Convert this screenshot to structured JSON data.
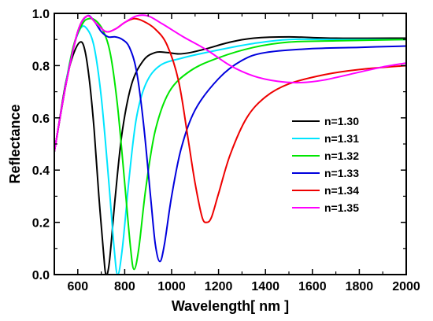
{
  "chart_data": {
    "type": "line",
    "xlabel": "Wavelength[ nm ]",
    "ylabel": "Reflectance",
    "xlim": [
      500,
      2000
    ],
    "ylim": [
      0,
      1.0
    ],
    "x_ticks": [
      600,
      800,
      1000,
      1200,
      1400,
      1600,
      1800,
      2000
    ],
    "y_ticks": [
      0.0,
      0.2,
      0.4,
      0.6,
      0.8,
      1.0
    ],
    "x_tick_labels": [
      "600",
      "800",
      "1000",
      "1200",
      "1400",
      "1600",
      "1800",
      "2000"
    ],
    "y_tick_labels": [
      "0.0",
      "0.2",
      "0.4",
      "0.6",
      "0.8",
      "1.0"
    ],
    "legend_position": "right-middle",
    "grid": false,
    "series": [
      {
        "name": "n=1.30",
        "color": "#000000",
        "points": [
          [
            500,
            0.47
          ],
          [
            520,
            0.58
          ],
          [
            550,
            0.74
          ],
          [
            580,
            0.84
          ],
          [
            610,
            0.89
          ],
          [
            630,
            0.86
          ],
          [
            650,
            0.74
          ],
          [
            670,
            0.55
          ],
          [
            690,
            0.3
          ],
          [
            710,
            0.08
          ],
          [
            720,
            0.0
          ],
          [
            735,
            0.05
          ],
          [
            760,
            0.3
          ],
          [
            790,
            0.55
          ],
          [
            830,
            0.73
          ],
          [
            880,
            0.82
          ],
          [
            930,
            0.85
          ],
          [
            980,
            0.85
          ],
          [
            1030,
            0.845
          ],
          [
            1080,
            0.85
          ],
          [
            1150,
            0.865
          ],
          [
            1250,
            0.89
          ],
          [
            1350,
            0.905
          ],
          [
            1500,
            0.91
          ],
          [
            1700,
            0.905
          ],
          [
            2000,
            0.905
          ]
        ]
      },
      {
        "name": "n=1.31",
        "color": "#00e5ff",
        "points": [
          [
            500,
            0.47
          ],
          [
            530,
            0.63
          ],
          [
            570,
            0.83
          ],
          [
            610,
            0.94
          ],
          [
            640,
            0.94
          ],
          [
            670,
            0.87
          ],
          [
            700,
            0.68
          ],
          [
            730,
            0.38
          ],
          [
            755,
            0.1
          ],
          [
            770,
            0.0
          ],
          [
            790,
            0.1
          ],
          [
            820,
            0.38
          ],
          [
            850,
            0.6
          ],
          [
            890,
            0.73
          ],
          [
            950,
            0.8
          ],
          [
            1050,
            0.83
          ],
          [
            1200,
            0.86
          ],
          [
            1350,
            0.885
          ],
          [
            1500,
            0.9
          ],
          [
            1700,
            0.9
          ],
          [
            2000,
            0.9
          ]
        ]
      },
      {
        "name": "n=1.32",
        "color": "#00e600",
        "points": [
          [
            500,
            0.47
          ],
          [
            540,
            0.68
          ],
          [
            580,
            0.87
          ],
          [
            620,
            0.96
          ],
          [
            650,
            0.98
          ],
          [
            680,
            0.97
          ],
          [
            710,
            0.93
          ],
          [
            740,
            0.84
          ],
          [
            770,
            0.64
          ],
          [
            800,
            0.35
          ],
          [
            825,
            0.1
          ],
          [
            840,
            0.02
          ],
          [
            860,
            0.1
          ],
          [
            890,
            0.33
          ],
          [
            930,
            0.55
          ],
          [
            990,
            0.7
          ],
          [
            1080,
            0.78
          ],
          [
            1200,
            0.83
          ],
          [
            1350,
            0.87
          ],
          [
            1500,
            0.89
          ],
          [
            1700,
            0.895
          ],
          [
            2000,
            0.9
          ]
        ]
      },
      {
        "name": "n=1.33",
        "color": "#0000dd",
        "points": [
          [
            500,
            0.47
          ],
          [
            550,
            0.73
          ],
          [
            600,
            0.93
          ],
          [
            640,
            0.99
          ],
          [
            670,
            0.97
          ],
          [
            700,
            0.93
          ],
          [
            730,
            0.91
          ],
          [
            760,
            0.91
          ],
          [
            790,
            0.9
          ],
          [
            820,
            0.87
          ],
          [
            850,
            0.78
          ],
          [
            880,
            0.58
          ],
          [
            910,
            0.3
          ],
          [
            930,
            0.12
          ],
          [
            950,
            0.05
          ],
          [
            970,
            0.12
          ],
          [
            1000,
            0.3
          ],
          [
            1040,
            0.48
          ],
          [
            1100,
            0.63
          ],
          [
            1200,
            0.75
          ],
          [
            1300,
            0.82
          ],
          [
            1400,
            0.85
          ],
          [
            1600,
            0.865
          ],
          [
            1800,
            0.87
          ],
          [
            2000,
            0.875
          ]
        ]
      },
      {
        "name": "n=1.34",
        "color": "#ee0000",
        "points": [
          [
            500,
            0.47
          ],
          [
            550,
            0.73
          ],
          [
            600,
            0.93
          ],
          [
            640,
            0.99
          ],
          [
            680,
            0.96
          ],
          [
            720,
            0.93
          ],
          [
            760,
            0.94
          ],
          [
            800,
            0.965
          ],
          [
            840,
            0.98
          ],
          [
            880,
            0.97
          ],
          [
            930,
            0.94
          ],
          [
            980,
            0.88
          ],
          [
            1030,
            0.74
          ],
          [
            1070,
            0.52
          ],
          [
            1100,
            0.35
          ],
          [
            1130,
            0.22
          ],
          [
            1150,
            0.2
          ],
          [
            1170,
            0.22
          ],
          [
            1200,
            0.31
          ],
          [
            1250,
            0.46
          ],
          [
            1320,
            0.6
          ],
          [
            1400,
            0.68
          ],
          [
            1500,
            0.73
          ],
          [
            1650,
            0.765
          ],
          [
            1800,
            0.785
          ],
          [
            2000,
            0.8
          ]
        ]
      },
      {
        "name": "n=1.35",
        "color": "#ff00ff",
        "points": [
          [
            500,
            0.47
          ],
          [
            550,
            0.73
          ],
          [
            600,
            0.93
          ],
          [
            640,
            0.99
          ],
          [
            680,
            0.96
          ],
          [
            720,
            0.93
          ],
          [
            760,
            0.94
          ],
          [
            800,
            0.965
          ],
          [
            850,
            0.99
          ],
          [
            900,
            0.99
          ],
          [
            960,
            0.96
          ],
          [
            1050,
            0.91
          ],
          [
            1150,
            0.86
          ],
          [
            1250,
            0.8
          ],
          [
            1350,
            0.76
          ],
          [
            1450,
            0.74
          ],
          [
            1550,
            0.735
          ],
          [
            1650,
            0.745
          ],
          [
            1800,
            0.775
          ],
          [
            1900,
            0.795
          ],
          [
            2000,
            0.81
          ]
        ]
      }
    ]
  }
}
